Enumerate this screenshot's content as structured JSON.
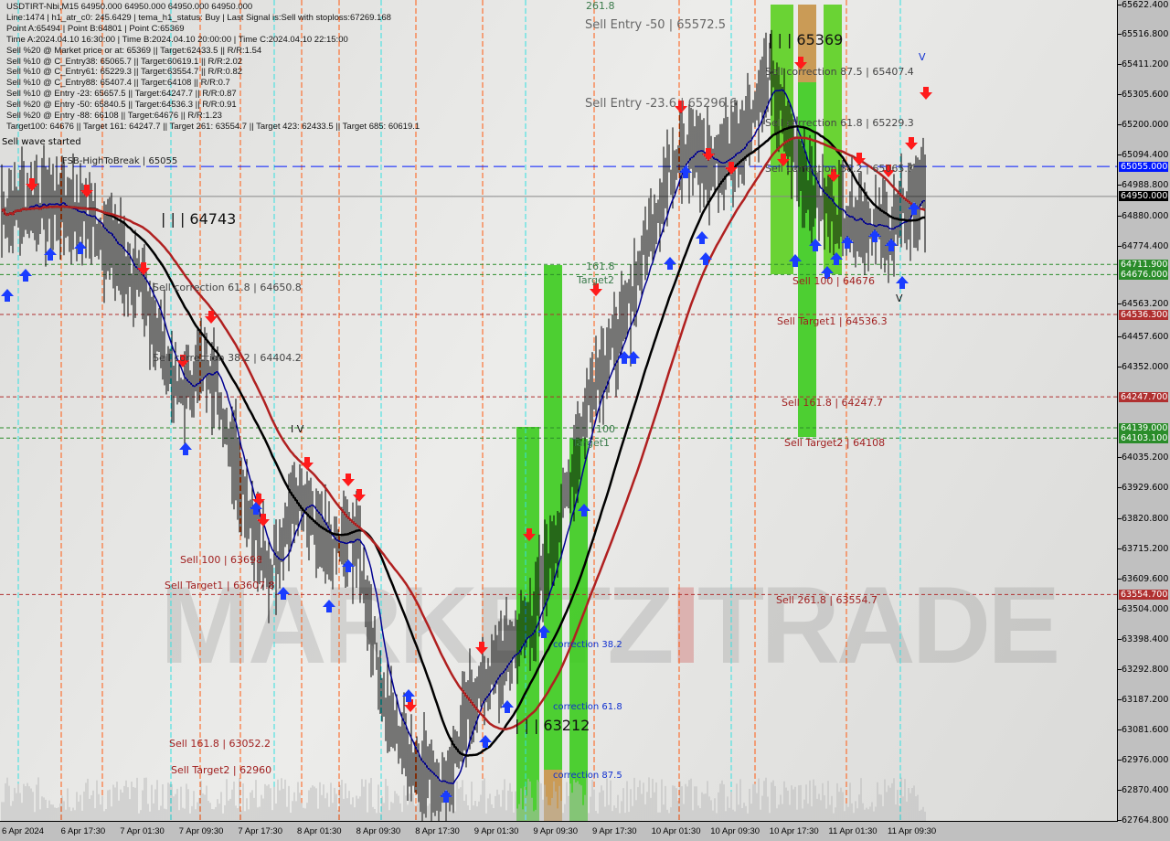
{
  "header": {
    "title": "USDTIRT-Nbi,M15  64950.000 64950.000 64950.000 64950.000",
    "lines": [
      "Line:1474 | h1_atr_c0: 245.6429 | tema_h1_status: Buy | Last Signal is:Sell with stoploss:67269.168",
      "Point A:65494 | Point B:64801 | Point C:65369",
      "Time A:2024.04.10 16:30:00 | Time B:2024.04.10 20:00:00 | Time C:2024.04.10 22:15:00",
      "Sell %20 @ Market price or at: 65369 || Target:62433.5 || R/R:1.54",
      "Sell %10 @ C_Entry38: 65065.7 || Target:60619.1 || R/R:2.02",
      "Sell %10 @ C_Entry61: 65229.3 || Target:63554.7 || R/R:0.82",
      "Sell %10 @ C_Entry88: 65407.4 || Target:64108 || R/R:0.7",
      "Sell %10 @ Entry -23: 65657.5 || Target:64247.7 || R/R:0.87",
      "Sell %20 @ Entry -50: 65840.5 || Target:64536.3 || R/R:0.91",
      "Sell %20 @ Entry -88: 66108 || Target:64676 || R/R:1.23",
      "Target100: 64676 || Target 161: 64247.7 || Target 261: 63554.7 || Target 423: 62433.5 || Target 685: 60619.1"
    ]
  },
  "watermark": {
    "a": "MARKETZ",
    "b": "I",
    "c": "TRADE"
  },
  "labels": {
    "sell_wave": "Sell wave started",
    "entry50": "Sell Entry -50 | 65572.5",
    "entry23": "Sell Entry -23.6 | 65296.6",
    "fsb": "FSB-HighToBreak | 65055",
    "w261": "261.8",
    "p65369": "| | | 65369",
    "p64743": "| | | 64743",
    "p63212": "| | | 63212",
    "sc875": "Sell correction 87.5 | 65407.4",
    "sc618r": "Sell correction 61.8 | 65229.3",
    "sc382r": "Sell correction 38.2 | 65065.7",
    "s100r": "Sell 100 | 64676",
    "st1r": "Sell Target1 | 64536.3",
    "s161r": "Sell 161.8 | 64247.7",
    "st2r": "Sell Target2 | 64108",
    "s261r": "Sell 261.8 | 63554.7",
    "sc618l": "Sell correction 61.8 | 64650.8",
    "sc382l": "Sell correction 38.2 | 64404.2",
    "s100l": "Sell 100 | 63698",
    "st1l": "Sell Target1 | 63607.8",
    "s161l": "Sell 161.8 | 63052.2",
    "st2l": "Sell Target2 | 62960",
    "b161": "161.8",
    "bt2": "Target2",
    "b100": "100",
    "bt1": "Target1",
    "c382": "correction 38.2",
    "c618": "correction 61.8",
    "c875": "correction 87.5",
    "iv": "I V",
    "v1": "V",
    "v2": "V"
  },
  "chart_data": {
    "type": "candlestick",
    "symbol": "USDTIRT-Nbi",
    "timeframe": "M15",
    "ylim": [
      62764.8,
      65622.4
    ],
    "y_ticks": [
      65622.4,
      65516.8,
      65411.2,
      65305.6,
      65200.0,
      65094.4,
      64988.8,
      64880.0,
      64774.4,
      64563.2,
      64457.6,
      64352.0,
      64035.2,
      63929.6,
      63820.8,
      63715.2,
      63609.6,
      63504.0,
      63398.4,
      63292.8,
      63187.2,
      63081.6,
      62976.0,
      62870.4,
      62764.8
    ],
    "x_ticks": [
      "6 Apr 2024",
      "6 Apr 17:30",
      "7 Apr 01:30",
      "7 Apr 09:30",
      "7 Apr 17:30",
      "8 Apr 01:30",
      "8 Apr 09:30",
      "8 Apr 17:30",
      "9 Apr 01:30",
      "9 Apr 09:30",
      "9 Apr 17:30",
      "10 Apr 01:30",
      "10 Apr 09:30",
      "10 Apr 17:30",
      "11 Apr 01:30",
      "11 Apr 09:30"
    ],
    "close_every_4h": [
      [
        "6 Apr 09:30",
        64900
      ],
      [
        "6 Apr 13:30",
        64930
      ],
      [
        "6 Apr 17:30",
        64920
      ],
      [
        "6 Apr 21:30",
        64870
      ],
      [
        "7 Apr 01:30",
        64740
      ],
      [
        "7 Apr 05:30",
        64560
      ],
      [
        "7 Apr 09:30",
        64250
      ],
      [
        "7 Apr 13:30",
        64380
      ],
      [
        "7 Apr 17:30",
        64000
      ],
      [
        "7 Apr 21:30",
        63620
      ],
      [
        "8 Apr 01:30",
        63900
      ],
      [
        "8 Apr 05:30",
        63700
      ],
      [
        "8 Apr 09:30",
        63760
      ],
      [
        "8 Apr 13:30",
        63150
      ],
      [
        "8 Apr 17:30",
        62960
      ],
      [
        "8 Apr 21:30",
        62880
      ],
      [
        "9 Apr 01:30",
        63200
      ],
      [
        "9 Apr 05:30",
        63330
      ],
      [
        "9 Apr 09:30",
        63480
      ],
      [
        "9 Apr 13:30",
        63850
      ],
      [
        "9 Apr 17:30",
        64300
      ],
      [
        "9 Apr 21:30",
        64480
      ],
      [
        "10 Apr 01:30",
        64850
      ],
      [
        "10 Apr 05:30",
        65150
      ],
      [
        "10 Apr 09:30",
        65050
      ],
      [
        "10 Apr 13:30",
        65150
      ],
      [
        "10 Apr 17:30",
        65369
      ],
      [
        "10 Apr 21:30",
        65050
      ],
      [
        "11 Apr 01:30",
        64900
      ],
      [
        "11 Apr 05:30",
        64880
      ],
      [
        "11 Apr 09:30",
        64820
      ],
      [
        "11 Apr 13:30",
        64950
      ]
    ],
    "levels": [
      {
        "price": 65055.0,
        "label": "65055.000",
        "color": "#0018ff",
        "style": "dashed"
      },
      {
        "price": 64950.0,
        "label": "64950.000",
        "color": "#000000",
        "style": "solid"
      },
      {
        "price": 64711.9,
        "label": "64711.900",
        "color": "#2a8c2a",
        "style": "dotted"
      },
      {
        "price": 64676.0,
        "label": "64676.000",
        "color": "#2a8c2a",
        "style": "dotted"
      },
      {
        "price": 64536.3,
        "label": "64536.300",
        "color": "#b03030",
        "style": "dotted"
      },
      {
        "price": 64247.7,
        "label": "64247.700",
        "color": "#b03030",
        "style": "dotted"
      },
      {
        "price": 64139.0,
        "label": "64139.000",
        "color": "#2a8c2a",
        "style": "dotted"
      },
      {
        "price": 64103.1,
        "label": "64103.100",
        "color": "#2a8c2a",
        "style": "dotted"
      },
      {
        "price": 63554.7,
        "label": "63554.700",
        "color": "#b03030",
        "style": "dotted"
      }
    ],
    "ma_colors": {
      "fast": "#000090",
      "mid": "#000000",
      "slow": "#b02020"
    }
  }
}
